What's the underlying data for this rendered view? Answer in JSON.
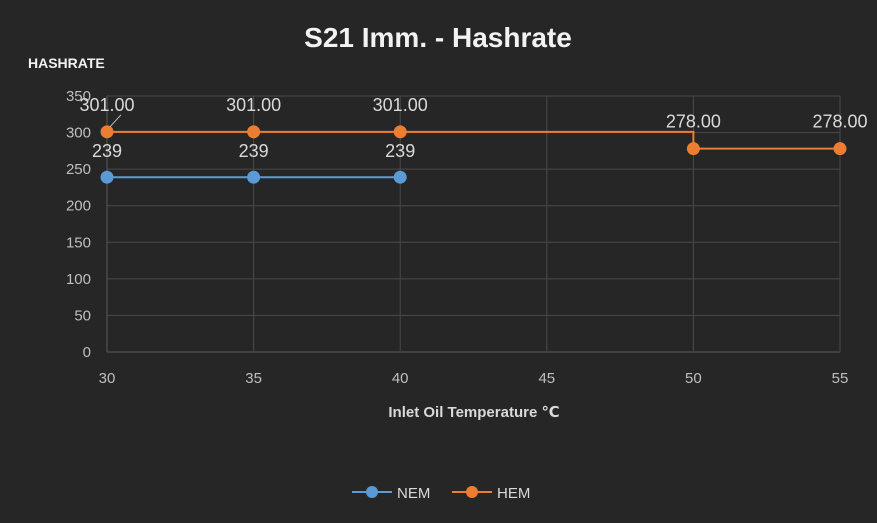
{
  "chart_data": {
    "type": "line",
    "title": "S21 Imm. - Hashrate",
    "ylabel": "HASHRATE",
    "xlabel": "Inlet Oil Temperature ℃",
    "xlim": [
      30,
      55
    ],
    "ylim": [
      0,
      350
    ],
    "x_ticks": [
      30,
      35,
      40,
      45,
      50,
      55
    ],
    "y_ticks": [
      0,
      50,
      100,
      150,
      200,
      250,
      300,
      350
    ],
    "grid": true,
    "legend_position": "bottom",
    "series": [
      {
        "name": "NEM",
        "color": "#5b9bd5",
        "step": false,
        "x": [
          30,
          35,
          40
        ],
        "y": [
          239,
          239,
          239
        ],
        "labels": [
          "239",
          "239",
          "239"
        ]
      },
      {
        "name": "HEM",
        "color": "#ed7d31",
        "step": true,
        "x": [
          30,
          35,
          40,
          50,
          55
        ],
        "y": [
          301,
          301,
          301,
          278,
          278
        ],
        "labels": [
          "301.00",
          "301.00",
          "301.00",
          "278.00",
          "278.00"
        ]
      }
    ]
  }
}
